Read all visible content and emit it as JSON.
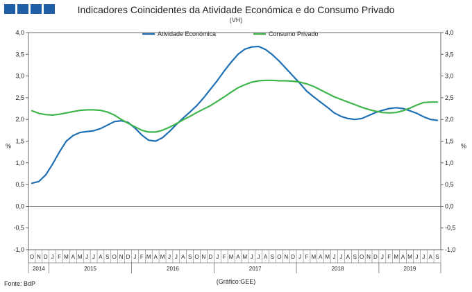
{
  "header": {
    "title": "Indicadores Coincidentes da Atividade Económica e do Consumo Privado",
    "subtitle": "(VH)"
  },
  "footer": {
    "source": "Fonte: BdP",
    "credit": "(Gráfico:GEE)"
  },
  "colors": {
    "logo": "#1f5fa8"
  },
  "chart_data": {
    "type": "line",
    "ylabel_left": "%",
    "ylabel_right": "%",
    "ylim": [
      -1.0,
      4.0
    ],
    "yticks": [
      "-1,0",
      "-0,5",
      "0,0",
      "0,5",
      "1,0",
      "1,5",
      "2,0",
      "2,5",
      "3,0",
      "3,5",
      "4,0"
    ],
    "legend_position": "top-center",
    "x": [
      "2014-10",
      "2014-11",
      "2014-12",
      "2015-01",
      "2015-02",
      "2015-03",
      "2015-04",
      "2015-05",
      "2015-06",
      "2015-07",
      "2015-08",
      "2015-09",
      "2015-10",
      "2015-11",
      "2015-12",
      "2016-01",
      "2016-02",
      "2016-03",
      "2016-04",
      "2016-05",
      "2016-06",
      "2016-07",
      "2016-08",
      "2016-09",
      "2016-10",
      "2016-11",
      "2016-12",
      "2017-01",
      "2017-02",
      "2017-03",
      "2017-04",
      "2017-05",
      "2017-06",
      "2017-07",
      "2017-08",
      "2017-09",
      "2017-10",
      "2017-11",
      "2017-12",
      "2018-01",
      "2018-02",
      "2018-03",
      "2018-04",
      "2018-05",
      "2018-06",
      "2018-07",
      "2018-08",
      "2018-09",
      "2018-10",
      "2018-11",
      "2018-12",
      "2019-01",
      "2019-02",
      "2019-03",
      "2019-04",
      "2019-05",
      "2019-06",
      "2019-07",
      "2019-08",
      "2019-09"
    ],
    "month_labels": [
      "O",
      "N",
      "D",
      "J",
      "F",
      "M",
      "A",
      "M",
      "J",
      "J",
      "A",
      "S",
      "O",
      "N",
      "D",
      "J",
      "F",
      "M",
      "A",
      "M",
      "J",
      "J",
      "A",
      "S",
      "O",
      "N",
      "D",
      "J",
      "F",
      "M",
      "A",
      "M",
      "J",
      "J",
      "A",
      "S",
      "O",
      "N",
      "D",
      "J",
      "F",
      "M",
      "A",
      "M",
      "J",
      "J",
      "A",
      "S",
      "O",
      "N",
      "D",
      "J",
      "F",
      "M",
      "A",
      "M",
      "J",
      "J",
      "A",
      "S"
    ],
    "year_groups": [
      {
        "label": "2014",
        "start": 0,
        "end": 2
      },
      {
        "label": "2015",
        "start": 3,
        "end": 14
      },
      {
        "label": "2016",
        "start": 15,
        "end": 26
      },
      {
        "label": "2017",
        "start": 27,
        "end": 38
      },
      {
        "label": "2018",
        "start": 39,
        "end": 50
      },
      {
        "label": "2019",
        "start": 51,
        "end": 59
      }
    ],
    "series": [
      {
        "name": "Atividade Económica",
        "color": "#1f6fb5",
        "values": [
          0.53,
          0.57,
          0.72,
          0.97,
          1.25,
          1.5,
          1.63,
          1.7,
          1.72,
          1.74,
          1.79,
          1.87,
          1.95,
          1.97,
          1.93,
          1.8,
          1.64,
          1.52,
          1.5,
          1.58,
          1.72,
          1.88,
          2.03,
          2.17,
          2.32,
          2.5,
          2.7,
          2.9,
          3.12,
          3.32,
          3.5,
          3.62,
          3.67,
          3.68,
          3.61,
          3.49,
          3.34,
          3.17,
          3.0,
          2.83,
          2.65,
          2.52,
          2.4,
          2.28,
          2.15,
          2.07,
          2.02,
          2.0,
          2.02,
          2.09,
          2.16,
          2.21,
          2.25,
          2.27,
          2.25,
          2.2,
          2.14,
          2.06,
          2.0,
          1.98
        ]
      },
      {
        "name": "Consumo Privado",
        "color": "#3db54a",
        "values": [
          2.2,
          2.14,
          2.11,
          2.1,
          2.12,
          2.15,
          2.18,
          2.21,
          2.22,
          2.22,
          2.21,
          2.17,
          2.1,
          2.0,
          1.91,
          1.83,
          1.75,
          1.71,
          1.71,
          1.75,
          1.82,
          1.9,
          1.99,
          2.07,
          2.16,
          2.24,
          2.32,
          2.42,
          2.52,
          2.63,
          2.73,
          2.8,
          2.86,
          2.89,
          2.9,
          2.9,
          2.89,
          2.89,
          2.88,
          2.86,
          2.82,
          2.76,
          2.68,
          2.6,
          2.52,
          2.46,
          2.4,
          2.34,
          2.28,
          2.23,
          2.19,
          2.16,
          2.15,
          2.16,
          2.2,
          2.26,
          2.33,
          2.39,
          2.4,
          2.4
        ]
      }
    ]
  }
}
